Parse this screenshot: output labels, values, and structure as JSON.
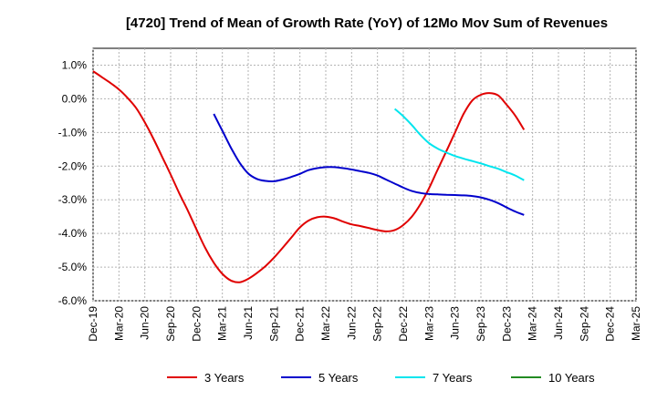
{
  "chart_data": {
    "type": "line",
    "title": "[4720]  Trend of Mean of Growth Rate (YoY) of 12Mo Mov Sum of Revenues",
    "xlabel": "",
    "ylabel": "",
    "x_ticks": [
      "Dec-19",
      "Mar-20",
      "Jun-20",
      "Sep-20",
      "Dec-20",
      "Mar-21",
      "Jun-21",
      "Sep-21",
      "Dec-21",
      "Mar-22",
      "Jun-22",
      "Sep-22",
      "Dec-22",
      "Mar-23",
      "Jun-23",
      "Sep-23",
      "Dec-23",
      "Mar-24",
      "Jun-24",
      "Sep-24",
      "Dec-24",
      "Mar-25"
    ],
    "y_ticks": [
      1.0,
      0.0,
      -1.0,
      -2.0,
      -3.0,
      -4.0,
      -5.0,
      -6.0
    ],
    "y_tick_labels": [
      "1.0%",
      "0.0%",
      "-1.0%",
      "-2.0%",
      "-3.0%",
      "-4.0%",
      "-5.0%",
      "-6.0%"
    ],
    "ylim": [
      -6.0,
      1.5
    ],
    "grid": true,
    "legend_position": "bottom",
    "series": [
      {
        "name": "3 Years",
        "color": "#e00000",
        "points": [
          [
            0,
            0.82
          ],
          [
            0.33,
            0.65
          ],
          [
            0.67,
            0.47
          ],
          [
            1,
            0.28
          ],
          [
            1.33,
            0.03
          ],
          [
            1.67,
            -0.28
          ],
          [
            2,
            -0.7
          ],
          [
            2.33,
            -1.18
          ],
          [
            2.67,
            -1.72
          ],
          [
            3,
            -2.25
          ],
          [
            3.33,
            -2.8
          ],
          [
            3.67,
            -3.33
          ],
          [
            4,
            -3.88
          ],
          [
            4.33,
            -4.42
          ],
          [
            4.67,
            -4.87
          ],
          [
            5,
            -5.2
          ],
          [
            5.33,
            -5.4
          ],
          [
            5.67,
            -5.45
          ],
          [
            6,
            -5.35
          ],
          [
            6.33,
            -5.18
          ],
          [
            6.67,
            -4.97
          ],
          [
            7,
            -4.72
          ],
          [
            7.33,
            -4.43
          ],
          [
            7.67,
            -4.12
          ],
          [
            8,
            -3.82
          ],
          [
            8.33,
            -3.62
          ],
          [
            8.67,
            -3.52
          ],
          [
            9,
            -3.5
          ],
          [
            9.33,
            -3.55
          ],
          [
            9.67,
            -3.65
          ],
          [
            10,
            -3.73
          ],
          [
            10.33,
            -3.78
          ],
          [
            10.67,
            -3.84
          ],
          [
            11,
            -3.9
          ],
          [
            11.33,
            -3.94
          ],
          [
            11.67,
            -3.9
          ],
          [
            12,
            -3.75
          ],
          [
            12.33,
            -3.5
          ],
          [
            12.67,
            -3.12
          ],
          [
            13,
            -2.65
          ],
          [
            13.33,
            -2.1
          ],
          [
            13.67,
            -1.55
          ],
          [
            14,
            -1.0
          ],
          [
            14.33,
            -0.45
          ],
          [
            14.67,
            -0.05
          ],
          [
            15,
            0.12
          ],
          [
            15.33,
            0.17
          ],
          [
            15.67,
            0.1
          ],
          [
            16,
            -0.18
          ],
          [
            16.33,
            -0.5
          ],
          [
            16.67,
            -0.92
          ]
        ]
      },
      {
        "name": "5 Years",
        "color": "#0000cc",
        "points": [
          [
            4.67,
            -0.45
          ],
          [
            5,
            -0.95
          ],
          [
            5.33,
            -1.45
          ],
          [
            5.67,
            -1.9
          ],
          [
            6,
            -2.22
          ],
          [
            6.33,
            -2.38
          ],
          [
            6.67,
            -2.44
          ],
          [
            7,
            -2.45
          ],
          [
            7.33,
            -2.4
          ],
          [
            7.67,
            -2.32
          ],
          [
            8,
            -2.23
          ],
          [
            8.33,
            -2.12
          ],
          [
            8.67,
            -2.06
          ],
          [
            9,
            -2.03
          ],
          [
            9.33,
            -2.03
          ],
          [
            9.67,
            -2.06
          ],
          [
            10,
            -2.1
          ],
          [
            10.33,
            -2.15
          ],
          [
            10.67,
            -2.2
          ],
          [
            11,
            -2.28
          ],
          [
            11.33,
            -2.4
          ],
          [
            11.67,
            -2.52
          ],
          [
            12,
            -2.64
          ],
          [
            12.33,
            -2.74
          ],
          [
            12.67,
            -2.8
          ],
          [
            13,
            -2.83
          ],
          [
            13.33,
            -2.84
          ],
          [
            13.67,
            -2.85
          ],
          [
            14,
            -2.86
          ],
          [
            14.33,
            -2.87
          ],
          [
            14.67,
            -2.89
          ],
          [
            15,
            -2.93
          ],
          [
            15.33,
            -3.0
          ],
          [
            15.67,
            -3.1
          ],
          [
            16,
            -3.23
          ],
          [
            16.33,
            -3.35
          ],
          [
            16.67,
            -3.45
          ]
        ]
      },
      {
        "name": "7 Years",
        "color": "#00e5ee",
        "points": [
          [
            11.67,
            -0.3
          ],
          [
            12,
            -0.52
          ],
          [
            12.33,
            -0.78
          ],
          [
            12.67,
            -1.08
          ],
          [
            13,
            -1.32
          ],
          [
            13.33,
            -1.48
          ],
          [
            13.67,
            -1.6
          ],
          [
            14,
            -1.7
          ],
          [
            14.33,
            -1.78
          ],
          [
            14.67,
            -1.85
          ],
          [
            15,
            -1.92
          ],
          [
            15.33,
            -2.0
          ],
          [
            15.67,
            -2.08
          ],
          [
            16,
            -2.18
          ],
          [
            16.33,
            -2.28
          ],
          [
            16.67,
            -2.42
          ]
        ]
      },
      {
        "name": "10 Years",
        "color": "#228b22",
        "points": []
      }
    ]
  }
}
